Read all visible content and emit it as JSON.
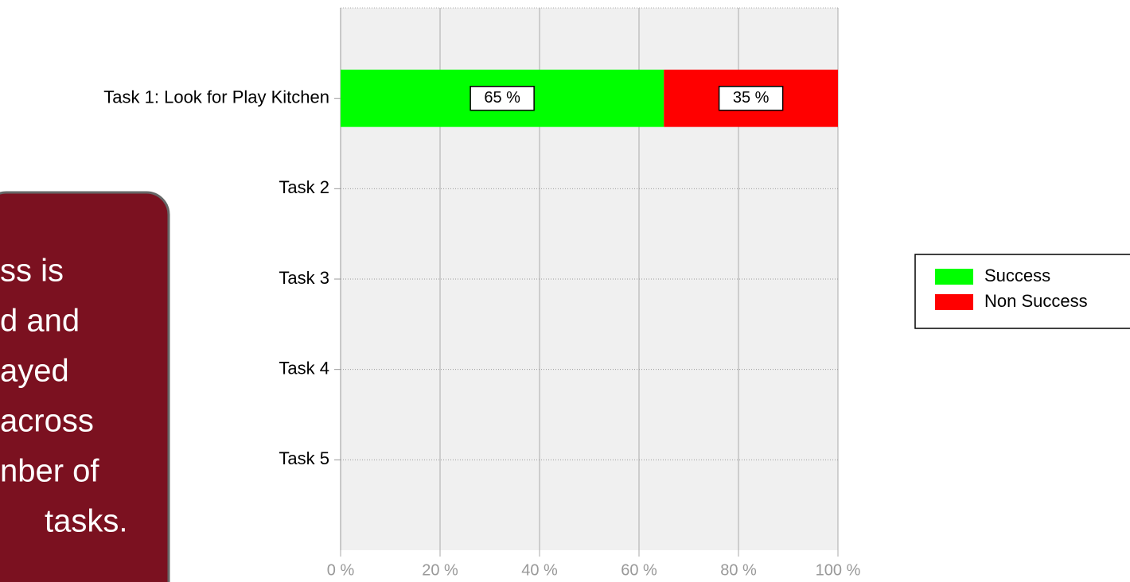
{
  "chart_data": {
    "type": "stacked-barh",
    "categories": [
      "Task 1: Look for Play Kitchen",
      "Task 2",
      "Task 3",
      "Task 4",
      "Task 5"
    ],
    "series": [
      {
        "name": "Success",
        "color": "#00ff00",
        "values": [
          65,
          null,
          null,
          null,
          null
        ],
        "value_labels": [
          "65 %",
          null,
          null,
          null,
          null
        ]
      },
      {
        "name": "Non Success",
        "color": "#ff0000",
        "values": [
          35,
          null,
          null,
          null,
          null
        ],
        "value_labels": [
          "35 %",
          null,
          null,
          null,
          null
        ]
      }
    ],
    "xlim": [
      0,
      100
    ],
    "xticks": [
      {
        "value": 0,
        "label": "0 %"
      },
      {
        "value": 20,
        "label": "20 %"
      },
      {
        "value": 40,
        "label": "40 %"
      },
      {
        "value": 60,
        "label": "60 %"
      },
      {
        "value": 80,
        "label": "80 %"
      },
      {
        "value": 100,
        "label": "100 %"
      }
    ],
    "grid": true,
    "legend": "right",
    "annotation": [
      "ss is",
      "d and",
      "ayed",
      "across",
      "nber of",
      "tasks."
    ]
  }
}
